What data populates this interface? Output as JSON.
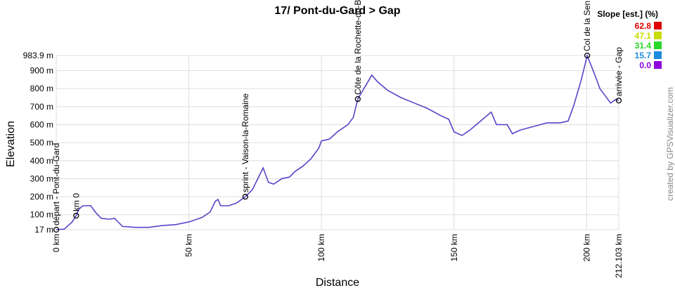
{
  "chart_data": {
    "type": "line",
    "title": "17/ Pont-du-Gard > Gap",
    "x_label": "Distance",
    "y_label": "Elevation",
    "credit": "created by GPSVisualizer.com",
    "x": [
      0,
      3,
      6,
      7.5,
      8.5,
      10,
      13,
      15,
      17,
      20,
      22,
      25,
      30,
      35,
      40,
      45,
      50,
      55,
      58,
      60,
      61,
      62,
      65,
      68,
      71.3,
      74,
      76,
      78,
      80,
      82,
      85,
      88,
      90,
      93,
      96,
      99,
      100,
      103,
      106,
      110,
      112,
      113.7,
      116,
      119,
      121,
      125,
      130,
      135,
      140,
      145,
      148,
      150,
      153,
      156,
      160,
      164,
      166,
      170,
      172,
      175,
      180,
      185,
      190,
      193,
      195,
      198,
      200.2,
      203,
      205,
      207,
      209,
      211,
      212.103
    ],
    "series": [
      {
        "name": "Elevation",
        "color": "#5546c8",
        "values": [
          17,
          20,
          60,
          95,
          130,
          150,
          150,
          110,
          80,
          75,
          80,
          35,
          30,
          30,
          40,
          45,
          60,
          85,
          115,
          175,
          185,
          150,
          150,
          165,
          200,
          240,
          300,
          360,
          280,
          270,
          300,
          310,
          340,
          370,
          410,
          470,
          510,
          520,
          560,
          600,
          640,
          742,
          800,
          875,
          840,
          790,
          750,
          720,
          690,
          650,
          630,
          560,
          540,
          570,
          620,
          670,
          600,
          600,
          550,
          570,
          590,
          610,
          610,
          620,
          700,
          850,
          983.9,
          880,
          800,
          760,
          720,
          740,
          734
        ]
      }
    ],
    "xlim": [
      0,
      212.103
    ],
    "ylim": [
      17,
      983.9
    ],
    "xticks": [
      {
        "value": 0,
        "label": "0 km"
      },
      {
        "value": 50,
        "label": "50 km"
      },
      {
        "value": 100,
        "label": "100 km"
      },
      {
        "value": 150,
        "label": "150 km"
      },
      {
        "value": 200,
        "label": "200 km"
      },
      {
        "value": 212.103,
        "label": "212.103 km"
      }
    ],
    "yticks": [
      {
        "value": 17,
        "label": "17 m"
      },
      {
        "value": 100,
        "label": "100 m"
      },
      {
        "value": 200,
        "label": "200 m"
      },
      {
        "value": 300,
        "label": "300 m"
      },
      {
        "value": 400,
        "label": "400 m"
      },
      {
        "value": 500,
        "label": "500 m"
      },
      {
        "value": 600,
        "label": "600 m"
      },
      {
        "value": 700,
        "label": "700 m"
      },
      {
        "value": 800,
        "label": "800 m"
      },
      {
        "value": 900,
        "label": "900 m"
      },
      {
        "value": 983.9,
        "label": "983.9 m"
      }
    ],
    "grid": true,
    "waypoints": [
      {
        "label": "départ - Pont-du-Gard",
        "x": 0,
        "value": 17
      },
      {
        "label": "km 0",
        "x": 7.5,
        "value": 95
      },
      {
        "label": "sprint - Vaison-la-Romaine",
        "x": 71.3,
        "value": 200
      },
      {
        "label": "Côte de la Rochette-du-B",
        "x": 113.7,
        "value": 742
      },
      {
        "label": "Col de la Sen",
        "x": 200.2,
        "value": 983.9
      },
      {
        "label": "arrivée - Gap",
        "x": 212.103,
        "value": 734
      }
    ],
    "slope_legend": {
      "title": "Slope [est.] (%)",
      "items": [
        {
          "value": 62.8,
          "color": "#e00000"
        },
        {
          "value": 47.1,
          "color": "#c8dc00"
        },
        {
          "value": 31.4,
          "color": "#28d828"
        },
        {
          "value": 15.7,
          "color": "#1e8cdc"
        },
        {
          "value": 0,
          "label": "0.0",
          "color": "#8c00dc"
        }
      ]
    }
  }
}
